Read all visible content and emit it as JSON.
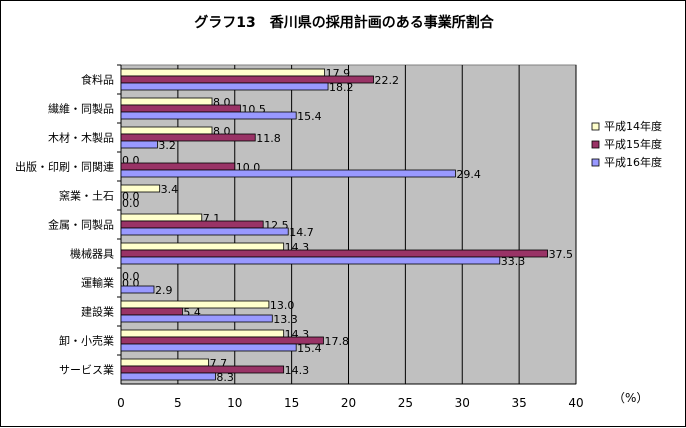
{
  "chart_data": {
    "type": "bar",
    "orientation": "horizontal",
    "title": "グラフ13　香川県の採用計画のある事業所割合",
    "unit_label": "（%）",
    "categories": [
      "食料品",
      "繊維・同製品",
      "木材・木製品",
      "出版・印刷・同関連",
      "窯業・土石",
      "金属・同製品",
      "機械器具",
      "運輸業",
      "建設業",
      "卸・小売業",
      "サービス業"
    ],
    "series": [
      {
        "name": "平成14年度",
        "color": "#ffffcc",
        "values": [
          17.9,
          8.0,
          8.0,
          0.0,
          3.4,
          7.1,
          14.3,
          0.0,
          13.0,
          14.3,
          7.7
        ]
      },
      {
        "name": "平成15年度",
        "color": "#993366",
        "values": [
          22.2,
          10.5,
          11.8,
          10.0,
          0.0,
          12.5,
          37.5,
          0.0,
          5.4,
          17.8,
          14.3
        ]
      },
      {
        "name": "平成16年度",
        "color": "#9999ff",
        "values": [
          18.2,
          15.4,
          3.2,
          29.4,
          0.0,
          14.7,
          33.3,
          2.9,
          13.3,
          15.4,
          8.3
        ]
      }
    ],
    "xlim": [
      0,
      40
    ],
    "xticks": [
      0,
      5,
      10,
      15,
      20,
      25,
      30,
      35,
      40
    ],
    "grid": true,
    "legend": "right",
    "plot_background": "#c0c0c0"
  }
}
